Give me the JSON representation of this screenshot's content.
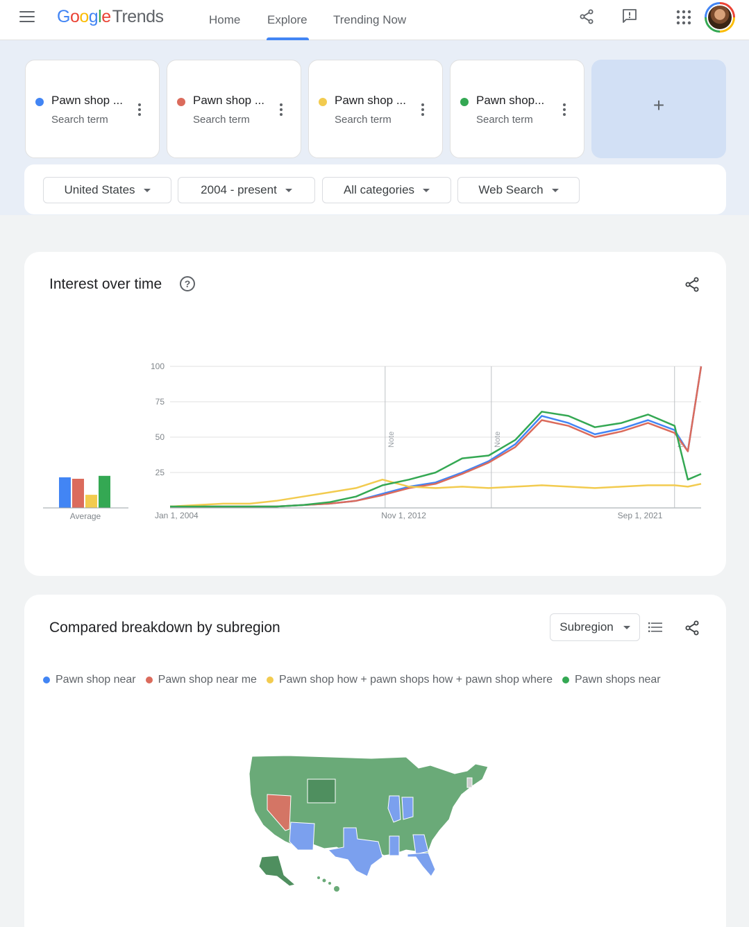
{
  "header": {
    "logo_google": [
      "G",
      "o",
      "o",
      "g",
      "l",
      "e"
    ],
    "logo_trends": "Trends",
    "nav": [
      "Home",
      "Explore",
      "Trending Now"
    ],
    "active_nav": "Explore",
    "icons": [
      "menu-icon",
      "share-icon",
      "feedback-icon",
      "apps-icon",
      "avatar"
    ]
  },
  "terms": [
    {
      "label": "Pawn shop ...",
      "sub": "Search term",
      "color": "#4285f4"
    },
    {
      "label": "Pawn shop ...",
      "sub": "Search term",
      "color": "#db6b5c"
    },
    {
      "label": "Pawn shop ...",
      "sub": "Search term",
      "color": "#f2cb4f"
    },
    {
      "label": "Pawn shop...",
      "sub": "Search term",
      "color": "#34a853"
    }
  ],
  "add_label": "+",
  "filters": {
    "geo": "United States",
    "time": "2004 - present",
    "category": "All categories",
    "property": "Web Search"
  },
  "interest": {
    "title": "Interest over time",
    "help": "?",
    "average_label": "Average"
  },
  "chart_data": {
    "type": "line",
    "title": "Interest over time",
    "xlabel": "",
    "ylabel": "",
    "ylim": [
      0,
      100
    ],
    "y_ticks": [
      25,
      50,
      75,
      100
    ],
    "x_ticks": [
      "Jan 1, 2004",
      "Nov 1, 2012",
      "Sep 1, 2021"
    ],
    "annotations": [
      "Note",
      "Note",
      "N"
    ],
    "x": [
      2004.0,
      2005.0,
      2006.0,
      2007.0,
      2008.0,
      2009.0,
      2010.0,
      2011.0,
      2012.0,
      2013.0,
      2014.0,
      2015.0,
      2016.0,
      2017.0,
      2018.0,
      2019.0,
      2020.0,
      2021.0,
      2022.0,
      2023.0,
      2023.5,
      2024.0
    ],
    "series": [
      {
        "color": "#4285f4",
        "average": 21,
        "values": [
          1,
          1,
          1,
          1,
          1,
          2,
          3,
          5,
          10,
          15,
          18,
          25,
          33,
          45,
          65,
          60,
          52,
          56,
          62,
          55,
          40,
          100
        ]
      },
      {
        "color": "#db6b5c",
        "average": 20,
        "values": [
          1,
          1,
          1,
          1,
          1,
          2,
          3,
          5,
          9,
          14,
          17,
          24,
          32,
          43,
          62,
          58,
          50,
          54,
          60,
          53,
          40,
          100
        ]
      },
      {
        "color": "#f2cb4f",
        "average": 9,
        "values": [
          1,
          2,
          3,
          3,
          5,
          8,
          11,
          14,
          20,
          15,
          14,
          15,
          14,
          15,
          16,
          15,
          14,
          15,
          16,
          16,
          15,
          17
        ]
      },
      {
        "color": "#34a853",
        "average": 22,
        "values": [
          1,
          1,
          1,
          1,
          1,
          2,
          4,
          8,
          16,
          20,
          25,
          35,
          37,
          48,
          68,
          65,
          57,
          60,
          66,
          58,
          20,
          24
        ]
      }
    ]
  },
  "breakdown": {
    "title": "Compared breakdown by subregion",
    "dropdown": "Subregion",
    "legend": [
      {
        "label": "Pawn shop near",
        "color": "#4285f4"
      },
      {
        "label": "Pawn shop near me",
        "color": "#db6b5c"
      },
      {
        "label": "Pawn shop how + pawn shops how + pawn shop where",
        "color": "#f2cb4f"
      },
      {
        "label": "Pawn shops near",
        "color": "#34a853"
      }
    ],
    "map_colors": {
      "green": "#6aaa78",
      "dark_green": "#4f8f5f",
      "blue": "#7ba0ee",
      "red": "#d47565",
      "gray": "#cfcfcf"
    }
  }
}
